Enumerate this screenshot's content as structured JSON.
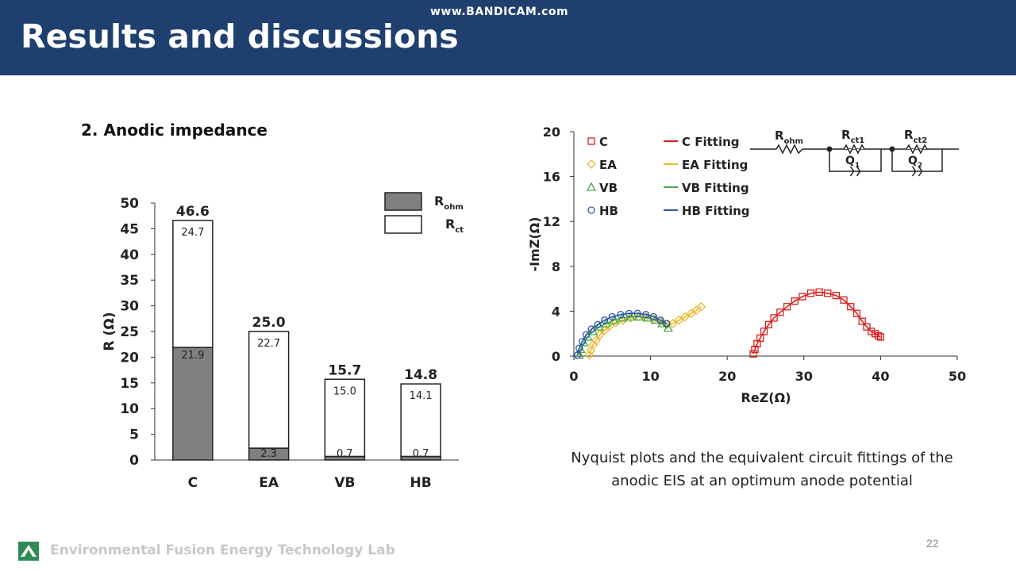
{
  "header": {
    "title": "Results and discussions",
    "watermark": "www.BANDICAM.com"
  },
  "section_title": "2. Anodic impedance",
  "caption": {
    "line1": "Nyquist plots and the equivalent circuit fittings of the",
    "line2": "anodic EIS at an optimum anode potential"
  },
  "footer": {
    "lab": "Environmental Fusion Energy Technology Lab",
    "page": "22"
  },
  "colors": {
    "header_bg": "#1f3f6e",
    "rohm": "#808080",
    "rct": "#ffffff",
    "C": "#d92020",
    "EA": "#e8b92e",
    "VB": "#4aa84a",
    "HB": "#2f55a8"
  },
  "chart_data": [
    {
      "type": "bar",
      "stacked": true,
      "categories": [
        "C",
        "EA",
        "VB",
        "HB"
      ],
      "series": [
        {
          "name": "R",
          "sub": "ohm",
          "values": [
            21.9,
            2.3,
            0.7,
            0.7
          ],
          "value_labels": [
            "21.9",
            "2.3",
            "0.7",
            "0.7"
          ]
        },
        {
          "name": "R",
          "sub": "ct",
          "values": [
            24.7,
            22.7,
            15.0,
            14.1
          ],
          "value_labels": [
            "24.7",
            "22.7",
            "15.0",
            "14.1"
          ]
        }
      ],
      "totals": [
        "46.6",
        "25.0",
        "15.7",
        "14.8"
      ],
      "ylabel": "R (Ω)",
      "ylim": [
        0,
        50
      ],
      "yticks": [
        0,
        5,
        10,
        15,
        20,
        25,
        30,
        35,
        40,
        45,
        50
      ],
      "legend_position": "top-right",
      "grid": false
    },
    {
      "type": "scatter",
      "xlabel": "ReZ(Ω)",
      "ylabel": "-ImZ(Ω)",
      "xlim": [
        0,
        50
      ],
      "ylim": [
        0,
        20
      ],
      "xticks": [
        0,
        10,
        20,
        30,
        40,
        50
      ],
      "yticks": [
        0,
        4,
        8,
        12,
        16,
        20
      ],
      "legend_position": "top-left",
      "grid": false,
      "series": [
        {
          "name": "C",
          "marker": "square",
          "fit_label": "C Fitting",
          "color": "#d92020",
          "points": [
            [
              23.4,
              0.2
            ],
            [
              23.6,
              0.6
            ],
            [
              23.9,
              1.1
            ],
            [
              24.3,
              1.6
            ],
            [
              24.8,
              2.2
            ],
            [
              25.4,
              2.8
            ],
            [
              26.1,
              3.4
            ],
            [
              26.9,
              3.9
            ],
            [
              27.8,
              4.4
            ],
            [
              28.8,
              4.9
            ],
            [
              29.8,
              5.3
            ],
            [
              30.9,
              5.6
            ],
            [
              32.0,
              5.7
            ],
            [
              33.1,
              5.6
            ],
            [
              34.2,
              5.4
            ],
            [
              35.2,
              5.0
            ],
            [
              36.1,
              4.4
            ],
            [
              36.9,
              3.8
            ],
            [
              37.6,
              3.1
            ],
            [
              38.2,
              2.6
            ],
            [
              38.8,
              2.2
            ],
            [
              39.3,
              2.0
            ],
            [
              39.7,
              1.8
            ],
            [
              40.0,
              1.7
            ]
          ]
        },
        {
          "name": "EA",
          "marker": "diamond",
          "fit_label": "EA Fitting",
          "color": "#e8b92e",
          "points": [
            [
              2.0,
              0.1
            ],
            [
              2.2,
              0.5
            ],
            [
              2.5,
              1.0
            ],
            [
              2.9,
              1.4
            ],
            [
              3.4,
              1.9
            ],
            [
              4.0,
              2.3
            ],
            [
              4.7,
              2.7
            ],
            [
              5.5,
              3.0
            ],
            [
              6.4,
              3.2
            ],
            [
              7.4,
              3.4
            ],
            [
              8.4,
              3.5
            ],
            [
              9.4,
              3.5
            ],
            [
              10.4,
              3.3
            ],
            [
              11.3,
              3.1
            ],
            [
              12.1,
              2.8
            ],
            [
              12.9,
              2.9
            ],
            [
              13.7,
              3.2
            ],
            [
              14.5,
              3.5
            ],
            [
              15.3,
              3.8
            ],
            [
              16.0,
              4.1
            ],
            [
              16.6,
              4.4
            ]
          ]
        },
        {
          "name": "VB",
          "marker": "triangle",
          "fit_label": "VB Fitting",
          "color": "#4aa84a",
          "points": [
            [
              0.7,
              0.1
            ],
            [
              0.9,
              0.6
            ],
            [
              1.3,
              1.2
            ],
            [
              1.8,
              1.7
            ],
            [
              2.5,
              2.2
            ],
            [
              3.3,
              2.6
            ],
            [
              4.2,
              2.9
            ],
            [
              5.2,
              3.2
            ],
            [
              6.3,
              3.4
            ],
            [
              7.4,
              3.5
            ],
            [
              8.5,
              3.5
            ],
            [
              9.6,
              3.4
            ],
            [
              10.6,
              3.2
            ],
            [
              11.5,
              2.9
            ],
            [
              12.3,
              2.5
            ]
          ]
        },
        {
          "name": "HB",
          "marker": "circle",
          "fit_label": "HB Fitting",
          "color": "#2f55a8",
          "points": [
            [
              0.5,
              0.1
            ],
            [
              0.7,
              0.7
            ],
            [
              1.1,
              1.3
            ],
            [
              1.6,
              1.9
            ],
            [
              2.3,
              2.4
            ],
            [
              3.1,
              2.8
            ],
            [
              4.0,
              3.2
            ],
            [
              5.0,
              3.5
            ],
            [
              6.1,
              3.7
            ],
            [
              7.2,
              3.8
            ],
            [
              8.3,
              3.8
            ],
            [
              9.4,
              3.7
            ],
            [
              10.4,
              3.5
            ],
            [
              11.3,
              3.2
            ],
            [
              12.1,
              2.9
            ]
          ]
        }
      ],
      "inset_circuit": {
        "labels": [
          {
            "main": "R",
            "sub": "ohm"
          },
          {
            "main": "R",
            "sub": "ct1"
          },
          {
            "main": "R",
            "sub": "ct2"
          },
          {
            "main": "Q",
            "sub": "1"
          },
          {
            "main": "Q",
            "sub": "2"
          }
        ]
      }
    }
  ]
}
